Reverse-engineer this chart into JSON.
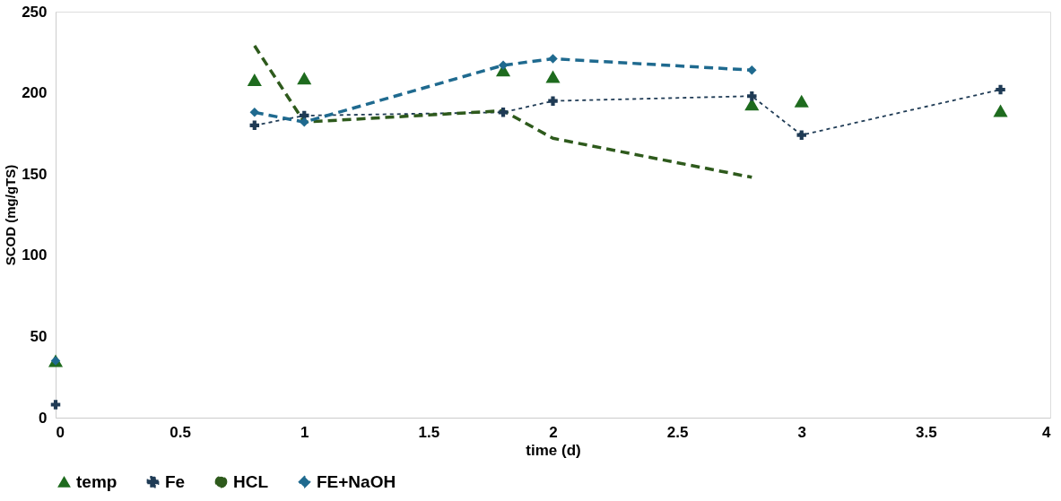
{
  "chart_data": {
    "type": "line",
    "xlabel": "time (d)",
    "ylabel": "SCOD  (mg/gTS)",
    "xlim": [
      0,
      4
    ],
    "xticks": [
      0,
      0.5,
      1,
      1.5,
      2,
      2.5,
      3,
      3.5,
      4
    ],
    "ylim": [
      0,
      250
    ],
    "yticks": [
      0,
      50,
      100,
      150,
      200,
      250
    ],
    "grid": false,
    "legend": "bottom",
    "series": [
      {
        "name": "temp",
        "type": "scatter",
        "marker": "triangle",
        "color": "#1e6b1e",
        "x": [
          0,
          0.8,
          1,
          1.8,
          2,
          2.8,
          3,
          3.8
        ],
        "values": [
          35,
          208,
          209,
          214,
          210,
          193,
          195,
          189
        ]
      },
      {
        "name": "Fe",
        "marker": "cross",
        "line_style": "dotted",
        "color": "#1f3b55",
        "x": [
          0,
          null,
          0.8,
          1,
          1.8,
          2,
          2.8,
          3,
          3.8
        ],
        "values": [
          8,
          null,
          180,
          186,
          188,
          195,
          198,
          174,
          202
        ]
      },
      {
        "name": "HCL",
        "marker": "none",
        "line_style": "dashed",
        "color": "#2e5a1c",
        "x": [
          0.8,
          1,
          1.8,
          2,
          2.8
        ],
        "values": [
          229,
          182,
          189,
          172,
          148
        ]
      },
      {
        "name": "FE+NaOH",
        "marker": "diamond",
        "line_style": "dashed",
        "color": "#1f6a8f",
        "x": [
          0,
          null,
          0.8,
          1,
          1.8,
          2,
          2.8
        ],
        "values": [
          35,
          null,
          188,
          182,
          217,
          221,
          214
        ]
      }
    ]
  }
}
